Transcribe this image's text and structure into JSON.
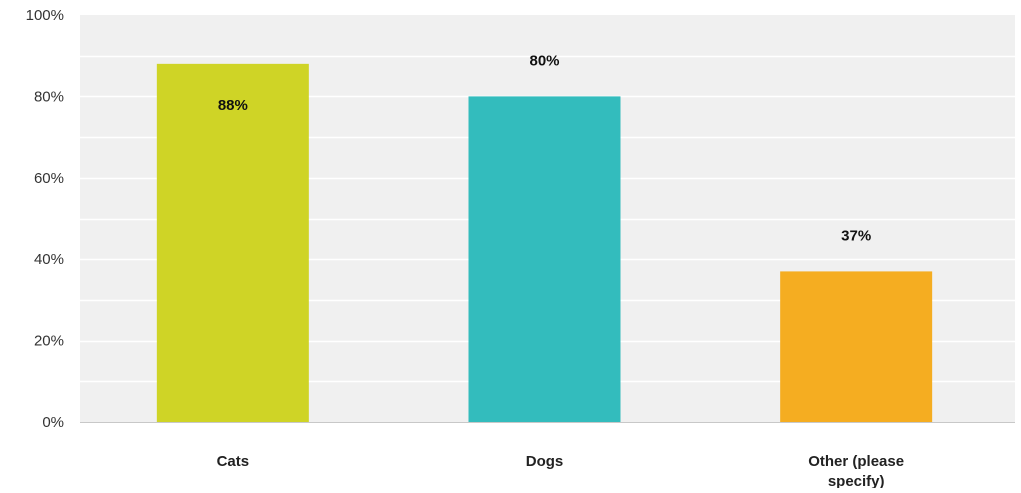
{
  "chart_data": {
    "type": "bar",
    "categories": [
      "Cats",
      "Dogs",
      "Other (please specify)"
    ],
    "category_labels": [
      [
        "Cats"
      ],
      [
        "Dogs"
      ],
      [
        "Other (please",
        "specify)"
      ]
    ],
    "values": [
      88,
      80,
      37
    ],
    "value_labels": [
      "88%",
      "80%",
      "37%"
    ],
    "colors": [
      "#cfd426",
      "#33bcbd",
      "#f5ad21"
    ],
    "ylim": [
      0,
      100
    ],
    "yticks": [
      0,
      20,
      40,
      60,
      80,
      100
    ],
    "ytick_labels": [
      "0%",
      "20%",
      "40%",
      "60%",
      "80%",
      "100%"
    ],
    "grid": true,
    "legend": "none",
    "background_color": "#f0f0f0",
    "grid_color": "#ffffff"
  }
}
